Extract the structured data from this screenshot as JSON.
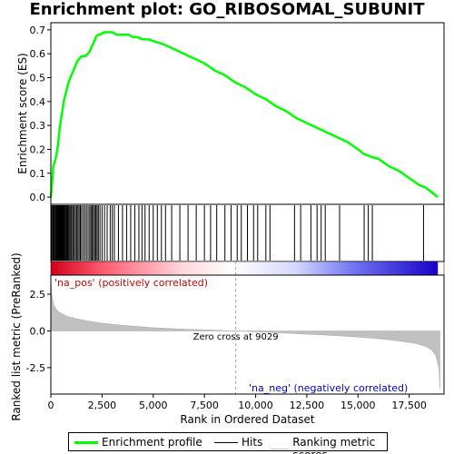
{
  "chart_data": {
    "type": "line",
    "title": "Enrichment plot: GO_RIBOSOMAL_SUBUNIT",
    "top_panel": {
      "ylabel": "Enrichment score (ES)",
      "ylim": [
        -0.03,
        0.73
      ],
      "yticks": [
        0.0,
        0.1,
        0.2,
        0.3,
        0.4,
        0.5,
        0.6,
        0.7
      ],
      "ytick_labels": [
        "0.0",
        "0.1",
        "0.2",
        "0.3",
        "0.4",
        "0.5",
        "0.6",
        "0.7"
      ],
      "series": [
        {
          "name": "Enrichment profile",
          "color": "#00ff00",
          "x": [
            0,
            60,
            120,
            200,
            280,
            350,
            420,
            500,
            580,
            650,
            720,
            800,
            900,
            1000,
            1100,
            1200,
            1300,
            1400,
            1500,
            1600,
            1700,
            1800,
            1900,
            2000,
            2100,
            2200,
            2300,
            2400,
            2600,
            2800,
            3000,
            3200,
            3400,
            3600,
            3800,
            4000,
            4200,
            4500,
            4800,
            5100,
            5500,
            6000,
            6500,
            7000,
            7500,
            8000,
            8500,
            9000,
            9500,
            10000,
            10500,
            11000,
            11500,
            12000,
            12500,
            13000,
            13500,
            14000,
            14500,
            15000,
            15300,
            15600,
            16000,
            16500,
            17000,
            17500,
            18000,
            18300,
            18600,
            18900
          ],
          "y": [
            0.0,
            0.06,
            0.13,
            0.15,
            0.18,
            0.22,
            0.28,
            0.33,
            0.37,
            0.41,
            0.43,
            0.46,
            0.49,
            0.51,
            0.53,
            0.55,
            0.57,
            0.58,
            0.59,
            0.59,
            0.59,
            0.6,
            0.61,
            0.63,
            0.65,
            0.67,
            0.68,
            0.68,
            0.69,
            0.69,
            0.69,
            0.68,
            0.68,
            0.68,
            0.68,
            0.67,
            0.67,
            0.66,
            0.66,
            0.65,
            0.64,
            0.62,
            0.6,
            0.58,
            0.56,
            0.53,
            0.51,
            0.48,
            0.46,
            0.43,
            0.41,
            0.38,
            0.36,
            0.33,
            0.31,
            0.29,
            0.27,
            0.25,
            0.23,
            0.2,
            0.18,
            0.17,
            0.16,
            0.13,
            0.11,
            0.08,
            0.05,
            0.04,
            0.02,
            0.0
          ]
        }
      ]
    },
    "hits": {
      "name": "Hits",
      "positions": [
        20,
        60,
        110,
        150,
        190,
        230,
        270,
        300,
        330,
        360,
        390,
        420,
        450,
        480,
        510,
        540,
        570,
        600,
        630,
        660,
        700,
        740,
        780,
        820,
        870,
        920,
        970,
        1020,
        1080,
        1140,
        1200,
        1260,
        1320,
        1380,
        1440,
        1500,
        1580,
        1660,
        1740,
        1820,
        1900,
        1960,
        2020,
        2080,
        2140,
        2200,
        2260,
        2320,
        2400,
        2500,
        2620,
        2750,
        2900,
        3000,
        3100,
        3300,
        3500,
        3700,
        3900,
        4100,
        4300,
        4450,
        4600,
        4800,
        5000,
        5200,
        5400,
        5600,
        5900,
        6300,
        6700,
        7100,
        7500,
        7800,
        8100,
        8500,
        8800,
        9100,
        9300,
        9600,
        9900,
        10100,
        10500,
        10700,
        11900,
        12200,
        12700,
        13000,
        13200,
        13400,
        14100,
        15300,
        15500,
        15700,
        18200
      ]
    },
    "ranked_panel": {
      "ylabel": "Ranked list metric (PreRanked)",
      "ylim": [
        -4.3,
        3.8
      ],
      "yticks": [
        -2.5,
        0.0,
        2.5
      ],
      "ytick_labels": [
        "-2.5",
        "0.0",
        "2.5"
      ],
      "series": [
        {
          "name": "Ranking metric scores",
          "color": "#c0c0c0",
          "x": [
            0,
            50,
            150,
            300,
            500,
            800,
            1200,
            1800,
            2500,
            3500,
            5000,
            6500,
            8000,
            9029,
            10500,
            12000,
            13500,
            15000,
            16000,
            17000,
            17800,
            18300,
            18600,
            18800,
            18950,
            19000
          ],
          "y": [
            3.6,
            2.4,
            1.75,
            1.4,
            1.2,
            1.0,
            0.85,
            0.68,
            0.52,
            0.38,
            0.22,
            0.12,
            0.05,
            0.0,
            -0.09,
            -0.19,
            -0.29,
            -0.42,
            -0.53,
            -0.68,
            -0.85,
            -1.05,
            -1.3,
            -1.7,
            -2.5,
            -3.95
          ]
        }
      ],
      "zero_cross": 9029
    },
    "xlabel": "Rank in Ordered Dataset",
    "xlim": [
      0,
      19200
    ],
    "xticks": [
      0,
      2500,
      5000,
      7500,
      10000,
      12500,
      15000,
      17500
    ],
    "xtick_labels": [
      "0",
      "2,500",
      "5,000",
      "7,500",
      "10,000",
      "12,500",
      "15,000",
      "17,500"
    ],
    "annotations": {
      "pos_label": "'na_pos' (positively correlated)",
      "neg_label": "'na_neg' (negatively correlated)",
      "zero_cross_label": "Zero cross at 9029"
    },
    "legend": {
      "placement": "bottom",
      "items": [
        {
          "label": "Enrichment profile",
          "color": "#00ff00"
        },
        {
          "label": "Hits",
          "color": "#000000"
        },
        {
          "label": "Ranking metric scores",
          "color": "#c0c0c0"
        }
      ]
    },
    "grid": false
  }
}
